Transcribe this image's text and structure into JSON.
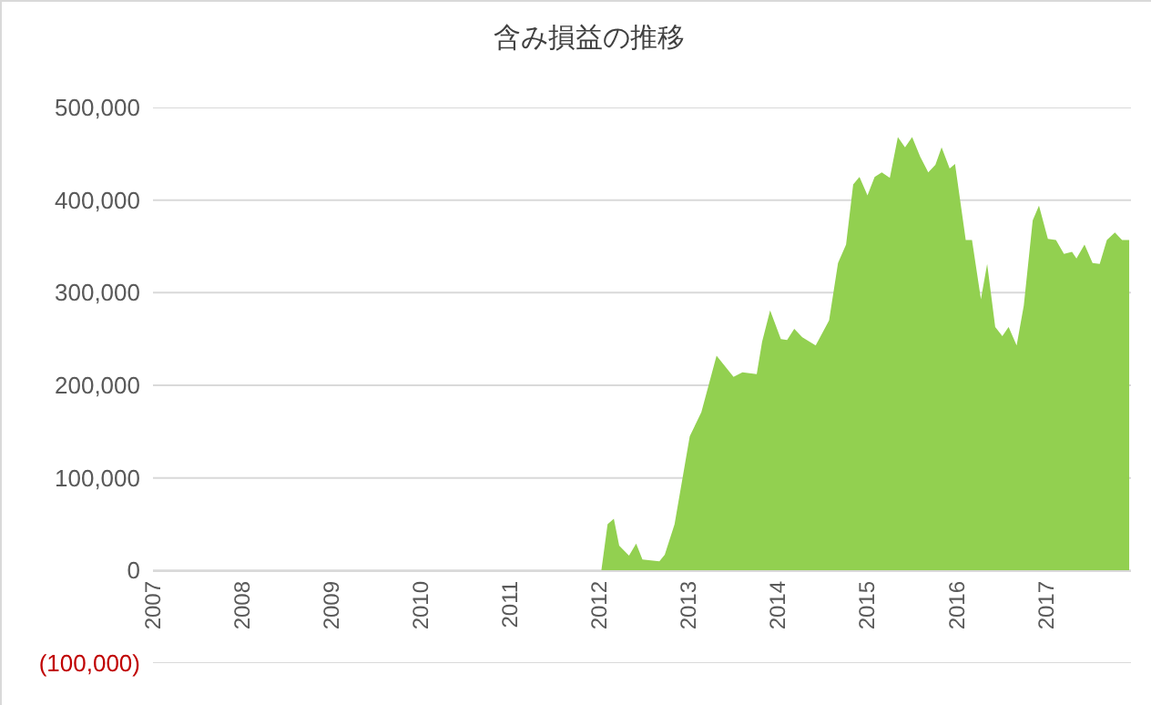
{
  "chart_data": {
    "type": "area",
    "title": "含み損益の推移",
    "color": "#92d050",
    "x": [
      2007,
      2012.0,
      2012.02,
      2012.09,
      2012.16,
      2012.22,
      2012.33,
      2012.41,
      2012.48,
      2012.67,
      2012.73,
      2012.84,
      2013.01,
      2013.14,
      2013.31,
      2013.5,
      2013.6,
      2013.76,
      2013.82,
      2013.91,
      2014.03,
      2014.1,
      2014.18,
      2014.27,
      2014.42,
      2014.57,
      2014.67,
      2014.76,
      2014.84,
      2014.91,
      2015.0,
      2015.08,
      2015.16,
      2015.25,
      2015.34,
      2015.42,
      2015.5,
      2015.59,
      2015.68,
      2015.76,
      2015.83,
      2015.92,
      2015.98,
      2016.1,
      2016.17,
      2016.27,
      2016.34,
      2016.43,
      2016.51,
      2016.58,
      2016.67,
      2016.75,
      2016.85,
      2016.92,
      2017.02,
      2017.11,
      2017.2,
      2017.29,
      2017.34,
      2017.43,
      2017.52,
      2017.6,
      2017.68,
      2017.77,
      2017.85,
      2017.93
    ],
    "values": [
      0,
      0,
      0,
      50000,
      56000,
      27000,
      16000,
      29000,
      12000,
      10000,
      17000,
      50000,
      145000,
      171000,
      232000,
      209000,
      214000,
      212000,
      247000,
      281000,
      250000,
      249000,
      261000,
      252000,
      243000,
      270000,
      332000,
      352000,
      417000,
      425000,
      405000,
      425000,
      430000,
      424000,
      468000,
      457000,
      468000,
      447000,
      430000,
      438000,
      457000,
      434000,
      439000,
      357000,
      357000,
      293000,
      331000,
      263000,
      253000,
      263000,
      243000,
      286000,
      378000,
      394000,
      358000,
      357000,
      342000,
      344000,
      337000,
      352000,
      332000,
      331000,
      357000,
      365000,
      357000,
      357000
    ],
    "xlim": [
      2007,
      2017.95
    ],
    "xticks": [
      2007,
      2008,
      2009,
      2010,
      2011,
      2012,
      2013,
      2014,
      2015,
      2016,
      2017
    ],
    "ylim": [
      -100000,
      500000
    ],
    "yticks": [
      {
        "value": -100000,
        "label": "(100,000)"
      },
      {
        "value": 0,
        "label": "0"
      },
      {
        "value": 100000,
        "label": "100,000"
      },
      {
        "value": 200000,
        "label": "200,000"
      },
      {
        "value": 300000,
        "label": "300,000"
      },
      {
        "value": 400000,
        "label": "400,000"
      },
      {
        "value": 500000,
        "label": "500,000"
      }
    ],
    "grid": "y"
  }
}
